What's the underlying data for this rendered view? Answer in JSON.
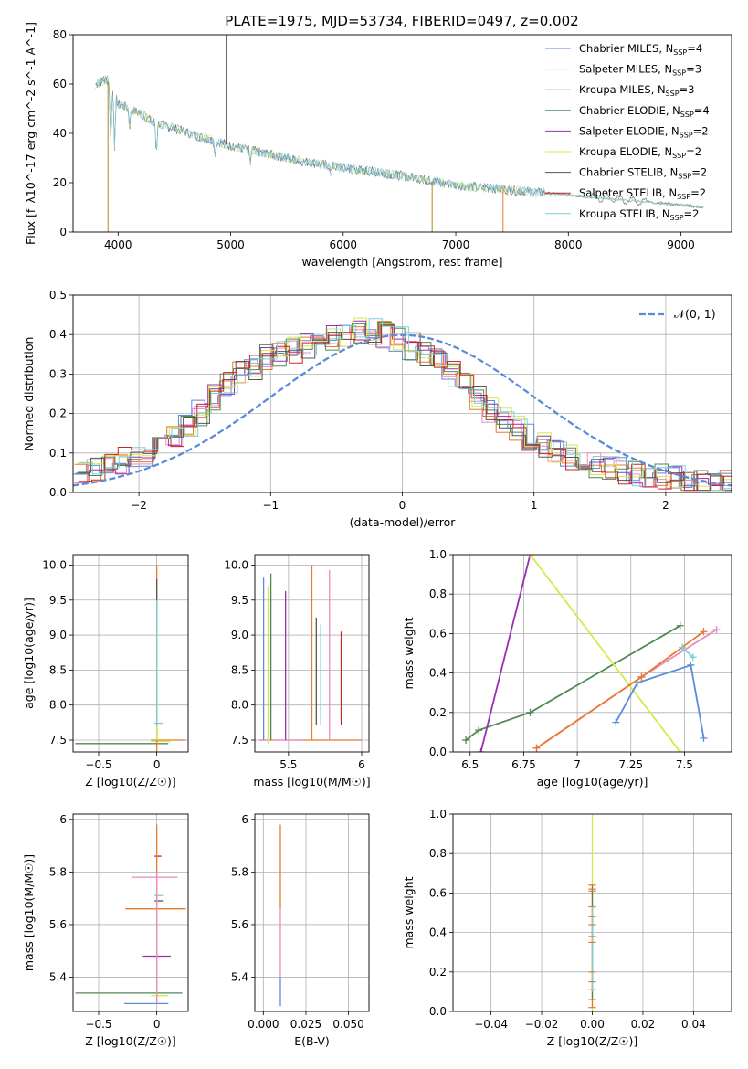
{
  "title": "PLATE=1975, MJD=53734, FIBERID=0497, z=0.002",
  "palette": {
    "Chabrier MILES": "#5b8bd8",
    "Salpeter MILES": "#e88cc0",
    "Kroupa MILES": "#b5851a",
    "Chabrier ELODIE": "#4f8a55",
    "Salpeter ELODIE": "#9a2fb0",
    "Kroupa ELODIE": "#d6e84a",
    "Chabrier STELIB": "#555555",
    "Salpeter STELIB": "#cc2222",
    "Kroupa STELIB": "#7ccfd8",
    "orange": "#e8792e",
    "normal": "#5b8bd8"
  },
  "chart_data": [
    {
      "type": "line",
      "name": "spectrum",
      "xlabel": "wavelength [Angstrom, rest frame]",
      "ylabel": "Flux [f_λ10^-17 erg cm^-2 s^-1 A^-1]",
      "xlim": [
        3600,
        9450
      ],
      "ylim": [
        0,
        80
      ],
      "xticks": [
        4000,
        5000,
        6000,
        7000,
        8000,
        9000
      ],
      "yticks": [
        0,
        20,
        40,
        60,
        80
      ],
      "grid": false,
      "legend_position": "top-right",
      "continuum_x": [
        3800,
        3900,
        4000,
        4100,
        4200,
        4300,
        4500,
        4700,
        5000,
        5300,
        5600,
        6000,
        6500,
        7000,
        7500,
        8000,
        8500,
        9000,
        9200
      ],
      "continuum_y": [
        60,
        62,
        52,
        50,
        48,
        45,
        42,
        39,
        35,
        32,
        29,
        26,
        23,
        19,
        17,
        15,
        13,
        11,
        10
      ],
      "series": [
        {
          "label": "Chabrier MILES, N",
          "sub": "SSP",
          "suffix": "=4"
        },
        {
          "label": "Salpeter MILES, N",
          "sub": "SSP",
          "suffix": "=3"
        },
        {
          "label": "Kroupa MILES, N",
          "sub": "SSP",
          "suffix": "=3"
        },
        {
          "label": "Chabrier ELODIE, N",
          "sub": "SSP",
          "suffix": "=4"
        },
        {
          "label": "Salpeter ELODIE, N",
          "sub": "SSP",
          "suffix": "=2"
        },
        {
          "label": "Kroupa ELODIE, N",
          "sub": "SSP",
          "suffix": "=2"
        },
        {
          "label": "Chabrier STELIB, N",
          "sub": "SSP",
          "suffix": "=2"
        },
        {
          "label": "Salpeter STELIB, N",
          "sub": "SSP",
          "suffix": "=2"
        },
        {
          "label": "Kroupa STELIB, N",
          "sub": "SSP",
          "suffix": "=2"
        }
      ],
      "spikes": [
        {
          "x": 3910,
          "y": 0,
          "color": "Kroupa MILES"
        },
        {
          "x": 4960,
          "y": 80,
          "color": "Chabrier STELIB"
        },
        {
          "x": 6790,
          "y": 0,
          "color": "Kroupa MILES"
        },
        {
          "x": 7420,
          "y": 0,
          "color": "orange"
        }
      ]
    },
    {
      "type": "step",
      "name": "residual-histogram",
      "xlabel": "(data-model)/error",
      "ylabel": "Normed distribution",
      "xlim": [
        -2.5,
        2.5
      ],
      "ylim": [
        0,
        0.5
      ],
      "xticks": [
        -2,
        -1,
        0,
        1,
        2
      ],
      "yticks": [
        0.0,
        0.1,
        0.2,
        0.3,
        0.4,
        0.5
      ],
      "grid": true,
      "legend_label": "𝒩(0, 1)",
      "bin_width": 0.1,
      "bin_start": -2.5,
      "base": [
        0.05,
        0.06,
        0.07,
        0.08,
        0.09,
        0.1,
        0.12,
        0.14,
        0.17,
        0.2,
        0.24,
        0.27,
        0.3,
        0.32,
        0.34,
        0.35,
        0.36,
        0.37,
        0.38,
        0.39,
        0.4,
        0.41,
        0.41,
        0.4,
        0.39,
        0.37,
        0.35,
        0.33,
        0.3,
        0.27,
        0.24,
        0.21,
        0.18,
        0.16,
        0.14,
        0.12,
        0.1,
        0.09,
        0.08,
        0.07,
        0.06,
        0.055,
        0.05,
        0.045,
        0.04,
        0.035,
        0.03,
        0.03,
        0.025,
        0.025
      ],
      "series_colors": [
        "Chabrier MILES",
        "Salpeter MILES",
        "orange",
        "Chabrier ELODIE",
        "Salpeter ELODIE",
        "Kroupa ELODIE",
        "Chabrier STELIB",
        "Salpeter STELIB",
        "Kroupa STELIB"
      ]
    },
    {
      "type": "errorbar",
      "name": "age-vs-Z",
      "xlabel": "Z [log10(Z/Z☉)]",
      "ylabel": "age [log10(age/yr)]",
      "xlim": [
        -0.72,
        0.27
      ],
      "ylim": [
        7.33,
        10.15
      ],
      "xticks": [
        -0.5,
        0.0
      ],
      "yticks": [
        7.5,
        8.0,
        8.5,
        9.0,
        9.5,
        10.0
      ],
      "grid": true,
      "hbars": [
        {
          "y": 7.45,
          "x0": -0.7,
          "x1": 0.1,
          "color": "Chabrier ELODIE"
        },
        {
          "y": 7.5,
          "x0": -0.05,
          "x1": 0.25,
          "color": "orange"
        },
        {
          "y": 7.48,
          "x0": -0.05,
          "x1": 0.12,
          "color": "Kroupa ELODIE"
        },
        {
          "y": 7.74,
          "x0": -0.02,
          "x1": 0.05,
          "color": "Kroupa STELIB"
        }
      ],
      "vbars": [
        {
          "x": 0.0,
          "y0": 7.3,
          "y1": 10.0,
          "color": "orange"
        },
        {
          "x": 0.0,
          "y0": 7.5,
          "y1": 9.8,
          "color": "Chabrier STELIB"
        },
        {
          "x": 0.0,
          "y0": 7.5,
          "y1": 9.3,
          "color": "Kroupa ELODIE"
        },
        {
          "x": 0.0,
          "y0": 7.7,
          "y1": 9.5,
          "color": "Kroupa STELIB"
        }
      ]
    },
    {
      "type": "errorbar",
      "name": "age-vs-mass",
      "xlabel": "mass [log10(M/M☉)]",
      "ylabel": "",
      "xlim": [
        5.27,
        6.05
      ],
      "ylim": [
        7.33,
        10.15
      ],
      "xticks": [
        5.5,
        6.0
      ],
      "yticks": [
        7.5,
        8.0,
        8.5,
        9.0,
        9.5,
        10.0
      ],
      "grid": true,
      "hbars": [
        {
          "y": 7.5,
          "x0": 5.3,
          "x1": 6.0,
          "color": "orange"
        },
        {
          "y": 7.5,
          "x0": 5.3,
          "x1": 5.6,
          "color": "Salpeter MILES"
        }
      ],
      "vbars": [
        {
          "x": 5.33,
          "y0": 7.5,
          "y1": 9.82,
          "color": "Chabrier MILES"
        },
        {
          "x": 5.36,
          "y0": 7.45,
          "y1": 9.7,
          "color": "Kroupa ELODIE"
        },
        {
          "x": 5.38,
          "y0": 7.5,
          "y1": 9.88,
          "color": "Chabrier ELODIE"
        },
        {
          "x": 5.48,
          "y0": 7.5,
          "y1": 9.63,
          "color": "Salpeter ELODIE"
        },
        {
          "x": 5.66,
          "y0": 7.5,
          "y1": 10.0,
          "color": "orange"
        },
        {
          "x": 5.69,
          "y0": 7.72,
          "y1": 9.25,
          "color": "Chabrier STELIB"
        },
        {
          "x": 5.72,
          "y0": 7.72,
          "y1": 9.15,
          "color": "Kroupa STELIB"
        },
        {
          "x": 5.78,
          "y0": 7.5,
          "y1": 9.93,
          "color": "Salpeter MILES"
        },
        {
          "x": 5.86,
          "y0": 7.72,
          "y1": 9.05,
          "color": "Salpeter STELIB"
        }
      ]
    },
    {
      "type": "line",
      "name": "mass-weight-vs-age",
      "xlabel": "age [log10(age/yr)]",
      "ylabel": "mass weight",
      "xlim": [
        6.42,
        7.72
      ],
      "ylim": [
        0,
        1.0
      ],
      "xticks": [
        6.5,
        6.75,
        7.0,
        7.25,
        7.5
      ],
      "yticks": [
        0.0,
        0.2,
        0.4,
        0.6,
        0.8,
        1.0
      ],
      "grid": true,
      "series": [
        {
          "color": "Chabrier ELODIE",
          "x": [
            6.48,
            6.54,
            6.78,
            7.48
          ],
          "y": [
            0.06,
            0.11,
            0.2,
            0.64
          ]
        },
        {
          "color": "Salpeter ELODIE",
          "x": [
            6.55,
            6.78
          ],
          "y": [
            0.0,
            1.0
          ]
        },
        {
          "color": "Kroupa ELODIE",
          "x": [
            6.78,
            7.48
          ],
          "y": [
            1.0,
            0.0
          ]
        },
        {
          "color": "Salpeter MILES",
          "x": [
            6.81,
            7.3,
            7.65
          ],
          "y": [
            0.02,
            0.38,
            0.62
          ]
        },
        {
          "color": "orange",
          "x": [
            6.81,
            7.3,
            7.59
          ],
          "y": [
            0.02,
            0.38,
            0.61
          ]
        },
        {
          "color": "Chabrier MILES",
          "x": [
            7.18,
            7.28,
            7.53,
            7.59
          ],
          "y": [
            0.15,
            0.35,
            0.44,
            0.07
          ]
        },
        {
          "color": "Kroupa STELIB",
          "x": [
            7.49,
            7.54
          ],
          "y": [
            0.53,
            0.48
          ]
        }
      ]
    },
    {
      "type": "errorbar",
      "name": "mass-vs-Z",
      "xlabel": "Z [log10(Z/Z☉)]",
      "ylabel": "mass [log10(M/M☉)]",
      "xlim": [
        -0.72,
        0.27
      ],
      "ylim": [
        5.27,
        6.02
      ],
      "xticks": [
        -0.5,
        0.0
      ],
      "yticks": [
        5.4,
        5.6,
        5.8,
        6.0
      ],
      "grid": true,
      "hbars": [
        {
          "y": 5.86,
          "x0": -0.02,
          "x1": 0.04,
          "color": "Salpeter STELIB"
        },
        {
          "y": 5.78,
          "x0": -0.22,
          "x1": 0.18,
          "color": "Salpeter MILES"
        },
        {
          "y": 5.71,
          "x0": -0.02,
          "x1": 0.06,
          "color": "Kroupa STELIB"
        },
        {
          "y": 5.69,
          "x0": -0.02,
          "x1": 0.06,
          "color": "Chabrier STELIB"
        },
        {
          "y": 5.66,
          "x0": -0.27,
          "x1": 0.25,
          "color": "orange"
        },
        {
          "y": 5.48,
          "x0": -0.12,
          "x1": 0.12,
          "color": "Salpeter ELODIE"
        },
        {
          "y": 5.34,
          "x0": -0.7,
          "x1": 0.22,
          "color": "Chabrier ELODIE"
        },
        {
          "y": 5.33,
          "x0": -0.05,
          "x1": 0.1,
          "color": "Kroupa ELODIE"
        },
        {
          "y": 5.3,
          "x0": -0.28,
          "x1": 0.1,
          "color": "Chabrier MILES"
        }
      ],
      "vbars": [
        {
          "x": 0.0,
          "y0": 5.3,
          "y1": 5.98,
          "color": "orange"
        },
        {
          "x": 0.0,
          "y0": 5.3,
          "y1": 5.8,
          "color": "Salpeter MILES"
        }
      ]
    },
    {
      "type": "errorbar",
      "name": "mass-vs-ebv",
      "xlabel": "E(B-V)",
      "ylabel": "",
      "xlim": [
        -0.005,
        0.062
      ],
      "ylim": [
        5.27,
        6.02
      ],
      "xticks": [
        0.0,
        0.025,
        0.05
      ],
      "xticklabels": [
        "0.000",
        "0.025",
        "0.050"
      ],
      "yticks": [
        5.4,
        5.6,
        5.8,
        6.0
      ],
      "grid": true,
      "vbars": [
        {
          "x": 0.01,
          "y0": 5.66,
          "y1": 5.98,
          "color": "orange"
        },
        {
          "x": 0.01,
          "y0": 5.4,
          "y1": 5.66,
          "color": "Salpeter MILES"
        },
        {
          "x": 0.01,
          "y0": 5.29,
          "y1": 5.4,
          "color": "Chabrier MILES"
        }
      ]
    },
    {
      "type": "errorbar",
      "name": "mass-weight-vs-Z",
      "xlabel": "Z [log10(Z/Z☉)]",
      "ylabel": "mass weight",
      "xlim": [
        -0.055,
        0.055
      ],
      "ylim": [
        0,
        1.0
      ],
      "xticks": [
        -0.04,
        -0.02,
        0.0,
        0.02,
        0.04
      ],
      "xticklabels": [
        "−0.04",
        "−0.02",
        "0.00",
        "0.02",
        "0.04"
      ],
      "yticks": [
        0.0,
        0.2,
        0.4,
        0.6,
        0.8,
        1.0
      ],
      "grid": true,
      "vbars": [
        {
          "x": 0.0,
          "y0": 0.0,
          "y1": 1.0,
          "color": "Kroupa ELODIE"
        },
        {
          "x": 0.0,
          "y0": 0.02,
          "y1": 0.62,
          "color": "orange"
        },
        {
          "x": 0.0,
          "y0": 0.06,
          "y1": 0.64,
          "color": "Chabrier ELODIE"
        },
        {
          "x": 0.0,
          "y0": 0.1,
          "y1": 0.53,
          "color": "Kroupa STELIB"
        }
      ],
      "markers_y": [
        0.02,
        0.06,
        0.11,
        0.15,
        0.2,
        0.35,
        0.38,
        0.44,
        0.48,
        0.53,
        0.61,
        0.62,
        0.64
      ]
    }
  ]
}
